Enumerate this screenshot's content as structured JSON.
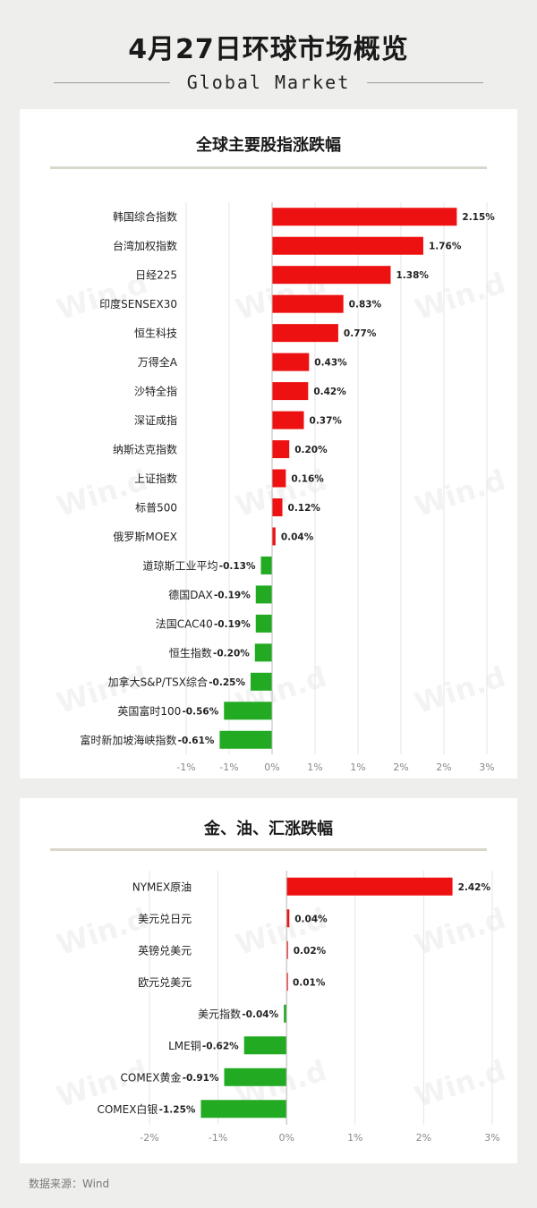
{
  "header": {
    "title": "4月27日环球市场概览",
    "subtitle": "Global Market"
  },
  "colors": {
    "up": "#ee1111",
    "down": "#22aa22",
    "grid": "#e6e6e6",
    "zero_line": "#bbbbbb"
  },
  "watermark": "Win.d",
  "footer": {
    "source": "数据来源：Wind"
  },
  "chart_data": [
    {
      "type": "bar",
      "orientation": "horizontal",
      "title": "全球主要股指涨跌幅",
      "categories": [
        "韩国综合指数",
        "台湾加权指数",
        "日经225",
        "印度SENSEX30",
        "恒生科技",
        "万得全A",
        "沙特全指",
        "深证成指",
        "纳斯达克指数",
        "上证指数",
        "标普500",
        "俄罗斯MOEX",
        "道琼斯工业平均",
        "德国DAX",
        "法国CAC40",
        "恒生指数",
        "加拿大S&P/TSX综合",
        "英国富时100",
        "富时新加坡海峡指数"
      ],
      "values": [
        2.15,
        1.76,
        1.38,
        0.83,
        0.77,
        0.43,
        0.42,
        0.37,
        0.2,
        0.16,
        0.12,
        0.04,
        -0.13,
        -0.19,
        -0.19,
        -0.2,
        -0.25,
        -0.56,
        -0.61
      ],
      "value_labels": [
        "2.15%",
        "1.76%",
        "1.38%",
        "0.83%",
        "0.77%",
        "0.43%",
        "0.42%",
        "0.37%",
        "0.20%",
        "0.16%",
        "0.12%",
        "0.04%",
        "-0.13%",
        "-0.19%",
        "-0.19%",
        "-0.20%",
        "-0.25%",
        "-0.56%",
        "-0.61%"
      ],
      "xlim": [
        -1.0,
        2.5
      ],
      "x_ticks": [
        -1.0,
        -0.5,
        0,
        0.5,
        1.0,
        1.5,
        2.0,
        2.5
      ],
      "x_tick_labels": [
        "-1%",
        "-1%",
        "0%",
        "1%",
        "1%",
        "2%",
        "2%",
        "3%"
      ]
    },
    {
      "type": "bar",
      "orientation": "horizontal",
      "title": "金、油、汇涨跌幅",
      "categories": [
        "NYMEX原油",
        "美元兑日元",
        "英镑兑美元",
        "欧元兑美元",
        "美元指数",
        "LME铜",
        "COMEX黄金",
        "COMEX白银"
      ],
      "values": [
        2.42,
        0.04,
        0.02,
        0.01,
        -0.04,
        -0.62,
        -0.91,
        -1.25
      ],
      "value_labels": [
        "2.42%",
        "0.04%",
        "0.02%",
        "0.01%",
        "-0.04%",
        "-0.62%",
        "-0.91%",
        "-1.25%"
      ],
      "xlim": [
        -2,
        3
      ],
      "x_ticks": [
        -2,
        -1,
        0,
        1,
        2,
        3
      ],
      "x_tick_labels": [
        "-2%",
        "-1%",
        "0%",
        "1%",
        "2%",
        "3%"
      ]
    }
  ]
}
